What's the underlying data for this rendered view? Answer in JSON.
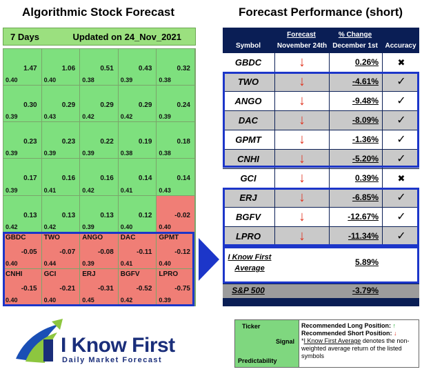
{
  "left_title": "Algorithmic Stock Forecast",
  "right_title": "Forecast Performance (short)",
  "forecast_header": {
    "days": "7 Days",
    "updated": "Updated on 24_Nov_2021"
  },
  "grid": [
    {
      "sym": "",
      "signal": "1.47",
      "pred": "0.40",
      "color": "g"
    },
    {
      "sym": "",
      "signal": "1.06",
      "pred": "0.40",
      "color": "g"
    },
    {
      "sym": "",
      "signal": "0.51",
      "pred": "0.38",
      "color": "g"
    },
    {
      "sym": "",
      "signal": "0.43",
      "pred": "0.39",
      "color": "g"
    },
    {
      "sym": "",
      "signal": "0.32",
      "pred": "0.38",
      "color": "g"
    },
    {
      "sym": "",
      "signal": "0.30",
      "pred": "0.39",
      "color": "g"
    },
    {
      "sym": "",
      "signal": "0.29",
      "pred": "0.43",
      "color": "g"
    },
    {
      "sym": "",
      "signal": "0.29",
      "pred": "0.42",
      "color": "g"
    },
    {
      "sym": "",
      "signal": "0.29",
      "pred": "0.42",
      "color": "g"
    },
    {
      "sym": "",
      "signal": "0.24",
      "pred": "0.39",
      "color": "g"
    },
    {
      "sym": "",
      "signal": "0.23",
      "pred": "0.39",
      "color": "g"
    },
    {
      "sym": "",
      "signal": "0.23",
      "pred": "0.39",
      "color": "g"
    },
    {
      "sym": "",
      "signal": "0.22",
      "pred": "0.39",
      "color": "g"
    },
    {
      "sym": "",
      "signal": "0.19",
      "pred": "0.38",
      "color": "g"
    },
    {
      "sym": "",
      "signal": "0.18",
      "pred": "0.38",
      "color": "g"
    },
    {
      "sym": "",
      "signal": "0.17",
      "pred": "0.39",
      "color": "g"
    },
    {
      "sym": "",
      "signal": "0.16",
      "pred": "0.41",
      "color": "g"
    },
    {
      "sym": "",
      "signal": "0.16",
      "pred": "0.42",
      "color": "g"
    },
    {
      "sym": "",
      "signal": "0.14",
      "pred": "0.41",
      "color": "g"
    },
    {
      "sym": "",
      "signal": "0.14",
      "pred": "0.43",
      "color": "g"
    },
    {
      "sym": "",
      "signal": "0.13",
      "pred": "0.42",
      "color": "g"
    },
    {
      "sym": "",
      "signal": "0.13",
      "pred": "0.42",
      "color": "g"
    },
    {
      "sym": "",
      "signal": "0.13",
      "pred": "0.39",
      "color": "g"
    },
    {
      "sym": "",
      "signal": "0.12",
      "pred": "0.40",
      "color": "g"
    },
    {
      "sym": "",
      "signal": "-0.02",
      "pred": "0.40",
      "color": "r"
    },
    {
      "sym": "GBDC",
      "signal": "-0.05",
      "pred": "0.40",
      "color": "r"
    },
    {
      "sym": "TWO",
      "signal": "-0.07",
      "pred": "0.44",
      "color": "r"
    },
    {
      "sym": "ANGO",
      "signal": "-0.08",
      "pred": "0.39",
      "color": "r"
    },
    {
      "sym": "DAC",
      "signal": "-0.11",
      "pred": "0.41",
      "color": "r"
    },
    {
      "sym": "GPMT",
      "signal": "-0.12",
      "pred": "0.40",
      "color": "r"
    },
    {
      "sym": "CNHI",
      "signal": "-0.15",
      "pred": "0.40",
      "color": "r"
    },
    {
      "sym": "GCI",
      "signal": "-0.21",
      "pred": "0.40",
      "color": "r"
    },
    {
      "sym": "ERJ",
      "signal": "-0.31",
      "pred": "0.45",
      "color": "r"
    },
    {
      "sym": "BGFV",
      "signal": "-0.52",
      "pred": "0.42",
      "color": "r"
    },
    {
      "sym": "LPRO",
      "signal": "-0.75",
      "pred": "0.39",
      "color": "r"
    }
  ],
  "perf_header": {
    "symbol": "Symbol",
    "forecast_top": "Forecast",
    "forecast_bot": "November 24th",
    "change_top": "% Change",
    "change_bot": "December 1st",
    "accuracy": "Accuracy"
  },
  "perf_rows": [
    {
      "symbol": "GBDC",
      "change": "0.26%",
      "acc": "x"
    },
    {
      "symbol": "TWO",
      "change": "-4.61%",
      "acc": "check"
    },
    {
      "symbol": "ANGO",
      "change": "-9.48%",
      "acc": "check"
    },
    {
      "symbol": "DAC",
      "change": "-8.09%",
      "acc": "check"
    },
    {
      "symbol": "GPMT",
      "change": "-1.36%",
      "acc": "check"
    },
    {
      "symbol": "CNHI",
      "change": "-5.20%",
      "acc": "check"
    },
    {
      "symbol": "GCI",
      "change": "0.39%",
      "acc": "x"
    },
    {
      "symbol": "ERJ",
      "change": "-6.85%",
      "acc": "check"
    },
    {
      "symbol": "BGFV",
      "change": "-12.67%",
      "acc": "check"
    },
    {
      "symbol": "LPRO",
      "change": "-11.34%",
      "acc": "check"
    }
  ],
  "average": {
    "label_line1": "I Know First",
    "label_line2": "Average",
    "value": "5.89%"
  },
  "sp500": {
    "label": "S&P 500",
    "value": "-3.79%"
  },
  "logo": {
    "name": "I Know First",
    "tagline": "Daily Market Forecast"
  },
  "legend": {
    "ticker": "Ticker",
    "signal": "Signal",
    "predictability": "Predictability",
    "long": "Recommended Long Position:",
    "short": "Recommended Short Position:",
    "avg_name": "I Know First Average",
    "avg_desc": " denotes the non-weighted average return of the listed symbols"
  },
  "colors": {
    "green": "#7ee07e",
    "red": "#f07e76",
    "navy": "#0a1e55",
    "accent_blue": "#1c36c9"
  }
}
